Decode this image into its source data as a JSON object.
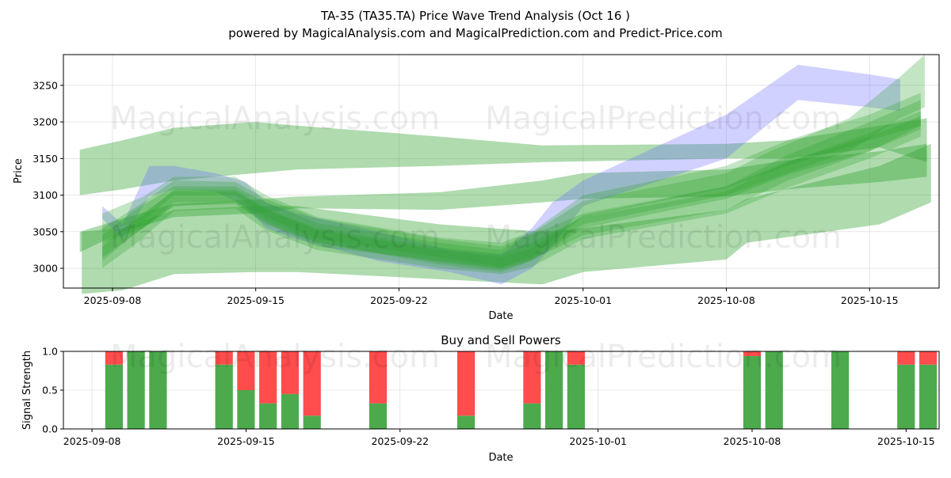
{
  "header": {
    "title_line1": "TA-35 (TA35.TA) Price Wave Trend Analysis (Oct 16 )",
    "title_line2": "powered by MagicalAnalysis.com and MagicalPrediction.com and Predict-Price.com"
  },
  "watermarks": [
    "MagicalAnalysis.com",
    "MagicalPrediction.com"
  ],
  "colors": {
    "green_band": "#2ca02c",
    "blue_band": "#6666ff",
    "buy": "#4caa4c",
    "sell": "#ff4c4c",
    "grid": "#b0b0b0"
  },
  "chart_data": [
    {
      "type": "area",
      "title": "",
      "xlabel": "Date",
      "ylabel": "Price",
      "x_start": "2025-09-06",
      "x_end": "2025-10-19",
      "xlim_days": [
        -2.4,
        40.4
      ],
      "ylim": [
        2973,
        3292
      ],
      "x_ticks": [
        {
          "day": 0,
          "label": "2025-09-08"
        },
        {
          "day": 7,
          "label": "2025-09-15"
        },
        {
          "day": 14,
          "label": "2025-09-22"
        },
        {
          "day": 23,
          "label": "2025-10-01"
        },
        {
          "day": 30,
          "label": "2025-10-08"
        },
        {
          "day": 37,
          "label": "2025-10-15"
        }
      ],
      "y_ticks": [
        3000,
        3050,
        3100,
        3150,
        3200,
        3250
      ],
      "grid": true,
      "series": [
        {
          "name": "wide-upper-band",
          "color": "green",
          "x": [
            -1.6,
            0.5,
            3,
            7,
            9,
            16,
            21,
            30,
            33,
            37.5,
            39.8
          ],
          "lower": [
            3100,
            3108,
            3120,
            3130,
            3135,
            3140,
            3145,
            3150,
            3150,
            3165,
            3145
          ],
          "upper": [
            3162,
            3175,
            3192,
            3200,
            3195,
            3180,
            3168,
            3170,
            3175,
            3195,
            3205
          ]
        },
        {
          "name": "mid-band",
          "color": "green",
          "x": [
            -1.6,
            0.5,
            3,
            7,
            9,
            16,
            21,
            23,
            30,
            33,
            37.5,
            39.8
          ],
          "lower": [
            3022,
            3050,
            3070,
            3075,
            3082,
            3080,
            3090,
            3095,
            3098,
            3108,
            3118,
            3125
          ],
          "upper": [
            3050,
            3068,
            3088,
            3094,
            3098,
            3104,
            3120,
            3130,
            3135,
            3148,
            3160,
            3170
          ]
        },
        {
          "name": "lower-band",
          "color": "green",
          "x": [
            -1.5,
            0.5,
            3,
            7,
            9,
            16,
            21,
            23,
            30,
            31,
            37.5,
            40
          ],
          "lower": [
            2965,
            2970,
            2992,
            2995,
            2995,
            2985,
            2978,
            2995,
            3012,
            3035,
            3060,
            3090
          ],
          "upper": [
            3050,
            3055,
            3080,
            3085,
            3085,
            3060,
            3050,
            3055,
            3080,
            3095,
            3140,
            3170
          ]
        },
        {
          "name": "blue-band",
          "color": "blue",
          "x": [
            -0.5,
            0.5,
            1.8,
            3,
            5,
            6.5,
            7.5,
            9,
            13,
            16.5,
            19,
            20.5,
            21.5,
            23,
            30,
            33.5,
            37,
            38.5
          ],
          "lower": [
            3068,
            3040,
            3098,
            3108,
            3105,
            3085,
            3055,
            3040,
            3010,
            2995,
            2978,
            3000,
            3030,
            3085,
            3150,
            3230,
            3220,
            3215
          ],
          "upper": [
            3085,
            3060,
            3140,
            3140,
            3130,
            3118,
            3090,
            3075,
            3050,
            3025,
            3018,
            3055,
            3090,
            3120,
            3210,
            3278,
            3265,
            3258
          ]
        },
        {
          "name": "wave-1",
          "color": "green",
          "x": [
            -0.5,
            1,
            3,
            6,
            7.5,
            10,
            16,
            19,
            20,
            23,
            30,
            33,
            37,
            39.5
          ],
          "lower": [
            3010,
            3045,
            3085,
            3088,
            3060,
            3035,
            3005,
            2995,
            3005,
            3045,
            3080,
            3120,
            3160,
            3195
          ],
          "upper": [
            3045,
            3078,
            3112,
            3112,
            3090,
            3062,
            3035,
            3025,
            3040,
            3075,
            3112,
            3155,
            3200,
            3230
          ]
        },
        {
          "name": "wave-2",
          "color": "green",
          "x": [
            -0.5,
            1.2,
            3,
            6,
            7.5,
            10,
            16,
            19,
            20.5,
            23,
            30,
            33,
            37,
            39.5
          ],
          "lower": [
            3000,
            3035,
            3078,
            3082,
            3052,
            3025,
            3000,
            2992,
            3002,
            3040,
            3075,
            3110,
            3150,
            3180
          ],
          "upper": [
            3030,
            3070,
            3105,
            3105,
            3080,
            3055,
            3028,
            3020,
            3035,
            3070,
            3105,
            3145,
            3185,
            3215
          ]
        },
        {
          "name": "wave-3",
          "color": "green",
          "x": [
            -0.5,
            1.5,
            3,
            6,
            7.5,
            10,
            16,
            19,
            20.5,
            23,
            30,
            32,
            36,
            38.5,
            39.7
          ],
          "lower": [
            3035,
            3055,
            3085,
            3090,
            3062,
            3030,
            3010,
            3000,
            3012,
            3060,
            3100,
            3120,
            3160,
            3205,
            3220
          ],
          "upper": [
            3055,
            3090,
            3120,
            3118,
            3095,
            3068,
            3040,
            3030,
            3048,
            3092,
            3130,
            3158,
            3205,
            3262,
            3292
          ]
        },
        {
          "name": "wave-4",
          "color": "green",
          "x": [
            -0.5,
            1.5,
            3,
            6,
            7.5,
            10,
            16,
            19,
            20.5,
            23,
            30,
            33,
            37,
            39.5
          ],
          "lower": [
            3050,
            3065,
            3100,
            3100,
            3070,
            3040,
            3015,
            3002,
            3015,
            3070,
            3110,
            3140,
            3175,
            3195
          ],
          "upper": [
            3075,
            3098,
            3125,
            3125,
            3100,
            3070,
            3042,
            3035,
            3050,
            3100,
            3140,
            3175,
            3210,
            3240
          ]
        },
        {
          "name": "mean-wave",
          "color": "green",
          "x": [
            -0.5,
            1.5,
            3,
            6,
            7.5,
            10,
            16,
            19,
            20.5,
            23,
            30,
            33,
            37,
            39.5
          ],
          "lower": [
            3015,
            3055,
            3090,
            3092,
            3065,
            3035,
            3008,
            2998,
            3010,
            3055,
            3095,
            3128,
            3160,
            3190
          ],
          "upper": [
            3035,
            3072,
            3108,
            3108,
            3082,
            3052,
            3025,
            3015,
            3028,
            3072,
            3112,
            3146,
            3180,
            3208
          ]
        }
      ]
    },
    {
      "type": "bar",
      "title": "Buy and Sell Powers",
      "xlabel": "Date",
      "ylabel": "Signal Strength",
      "xlim_days": [
        -1.3,
        38.5
      ],
      "ylim": [
        0,
        1.0
      ],
      "x_ticks": [
        {
          "day": 0,
          "label": "2025-09-08"
        },
        {
          "day": 7,
          "label": "2025-09-15"
        },
        {
          "day": 14,
          "label": "2025-09-22"
        },
        {
          "day": 23,
          "label": "2025-10-01"
        },
        {
          "day": 30,
          "label": "2025-10-08"
        },
        {
          "day": 37,
          "label": "2025-10-15"
        }
      ],
      "y_ticks": [
        0.0,
        0.5,
        1.0
      ],
      "y_tick_labels": [
        "0.0",
        "0.5",
        "1.0"
      ],
      "grid": true,
      "bar_width_days": 0.8,
      "series": [
        {
          "name": "Buy",
          "color": "buy"
        },
        {
          "name": "Sell",
          "color": "sell"
        }
      ],
      "bars": [
        {
          "day": 1,
          "buy": 0.83,
          "sell": 0.17
        },
        {
          "day": 2,
          "buy": 1.0,
          "sell": 0.0
        },
        {
          "day": 3,
          "buy": 1.0,
          "sell": 0.0
        },
        {
          "day": 6,
          "buy": 0.83,
          "sell": 0.17
        },
        {
          "day": 7,
          "buy": 0.5,
          "sell": 0.5
        },
        {
          "day": 8,
          "buy": 0.33,
          "sell": 0.67
        },
        {
          "day": 9,
          "buy": 0.45,
          "sell": 0.55
        },
        {
          "day": 10,
          "buy": 0.17,
          "sell": 0.83
        },
        {
          "day": 13,
          "buy": 0.33,
          "sell": 0.67
        },
        {
          "day": 17,
          "buy": 0.17,
          "sell": 0.83
        },
        {
          "day": 20,
          "buy": 0.33,
          "sell": 0.67
        },
        {
          "day": 21,
          "buy": 1.0,
          "sell": 0.0
        },
        {
          "day": 22,
          "buy": 0.83,
          "sell": 0.17
        },
        {
          "day": 30,
          "buy": 0.94,
          "sell": 0.06
        },
        {
          "day": 31,
          "buy": 1.0,
          "sell": 0.0
        },
        {
          "day": 34,
          "buy": 1.0,
          "sell": 0.0
        },
        {
          "day": 37,
          "buy": 0.83,
          "sell": 0.17
        },
        {
          "day": 38,
          "buy": 0.83,
          "sell": 0.17
        }
      ]
    }
  ]
}
